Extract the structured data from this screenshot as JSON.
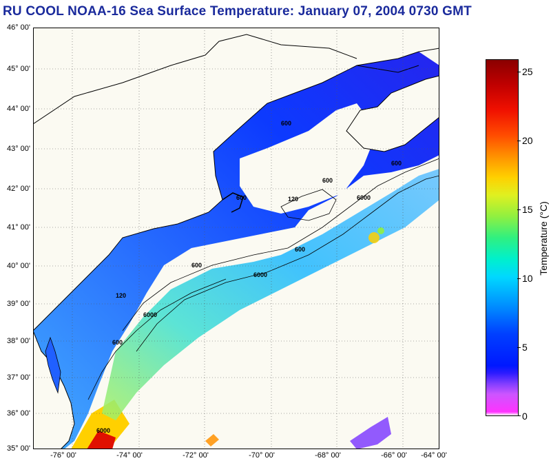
{
  "title": "RU COOL  NOAA-16  Sea Surface Temperature:  January 07, 2004 0730 GMT",
  "y_axis": [
    "46° 00'",
    "45° 00'",
    "44° 00'",
    "43° 00'",
    "42° 00'",
    "41° 00'",
    "40° 00'",
    "39° 00'",
    "38° 00'",
    "37° 00'",
    "36° 00'",
    "35° 00'"
  ],
  "x_axis": [
    "-76° 00'",
    "-74° 00'",
    "-72° 00'",
    "-70° 00'",
    "-68° 00'",
    "-66° 00'",
    "-64° 00'"
  ],
  "colorbar": {
    "label": "Temperature (°C)",
    "ticks": [
      "25",
      "20",
      "15",
      "10",
      "5",
      "0"
    ]
  },
  "contours": [
    "600",
    "6000",
    "120"
  ],
  "colors": {
    "title": "#1a2a9c",
    "land": "#fbfaf2"
  }
}
